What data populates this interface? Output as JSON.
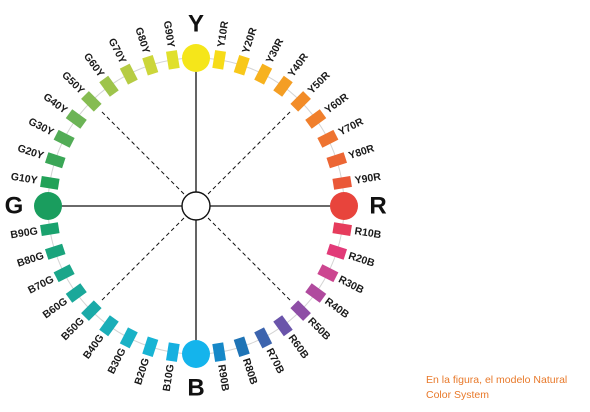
{
  "primaries": [
    {
      "id": "Y",
      "label": "Y",
      "color": "#f5e61a"
    },
    {
      "id": "R",
      "label": "R",
      "color": "#e8443c"
    },
    {
      "id": "B",
      "label": "B",
      "color": "#14b4ec"
    },
    {
      "id": "G",
      "label": "G",
      "color": "#1a9d5e"
    }
  ],
  "segments": [
    {
      "label": "Y10R",
      "color": "#f7dc18"
    },
    {
      "label": "Y20R",
      "color": "#f8c81a"
    },
    {
      "label": "Y30R",
      "color": "#f7b21e"
    },
    {
      "label": "Y40R",
      "color": "#f49e24"
    },
    {
      "label": "Y50R",
      "color": "#f28c28"
    },
    {
      "label": "Y60R",
      "color": "#f07f2c"
    },
    {
      "label": "Y70R",
      "color": "#ee7330"
    },
    {
      "label": "Y80R",
      "color": "#ec6634"
    },
    {
      "label": "Y90R",
      "color": "#ea5838"
    },
    {
      "label": "R10B",
      "color": "#e63c5c"
    },
    {
      "label": "R20B",
      "color": "#e23a78"
    },
    {
      "label": "R30B",
      "color": "#cc4690"
    },
    {
      "label": "R40B",
      "color": "#b04a9e"
    },
    {
      "label": "R50B",
      "color": "#8e4ea6"
    },
    {
      "label": "R60B",
      "color": "#6a54aa"
    },
    {
      "label": "R70B",
      "color": "#3c64ae"
    },
    {
      "label": "R80B",
      "color": "#1f74b6"
    },
    {
      "label": "R90B",
      "color": "#1688c8"
    },
    {
      "label": "B10G",
      "color": "#16b0e0"
    },
    {
      "label": "B20G",
      "color": "#18b4d4"
    },
    {
      "label": "B30G",
      "color": "#1ab2c6"
    },
    {
      "label": "B40G",
      "color": "#1aaeb8"
    },
    {
      "label": "B50G",
      "color": "#1aaaa8"
    },
    {
      "label": "B60G",
      "color": "#1aa89a"
    },
    {
      "label": "B70G",
      "color": "#1aa68a"
    },
    {
      "label": "B80G",
      "color": "#1aa47c"
    },
    {
      "label": "B90G",
      "color": "#1aa26e"
    },
    {
      "label": "G10Y",
      "color": "#21a258"
    },
    {
      "label": "G20Y",
      "color": "#3aa656"
    },
    {
      "label": "G30Y",
      "color": "#52ac56"
    },
    {
      "label": "G40Y",
      "color": "#6cb456"
    },
    {
      "label": "G50Y",
      "color": "#86bc52"
    },
    {
      "label": "G60Y",
      "color": "#9ec44c"
    },
    {
      "label": "G70Y",
      "color": "#b6cc44"
    },
    {
      "label": "G80Y",
      "color": "#ccd63a"
    },
    {
      "label": "G90Y",
      "color": "#e0e02c"
    }
  ],
  "caption": {
    "line1": "En la figura, el modelo Natural",
    "line2": "Color System"
  }
}
